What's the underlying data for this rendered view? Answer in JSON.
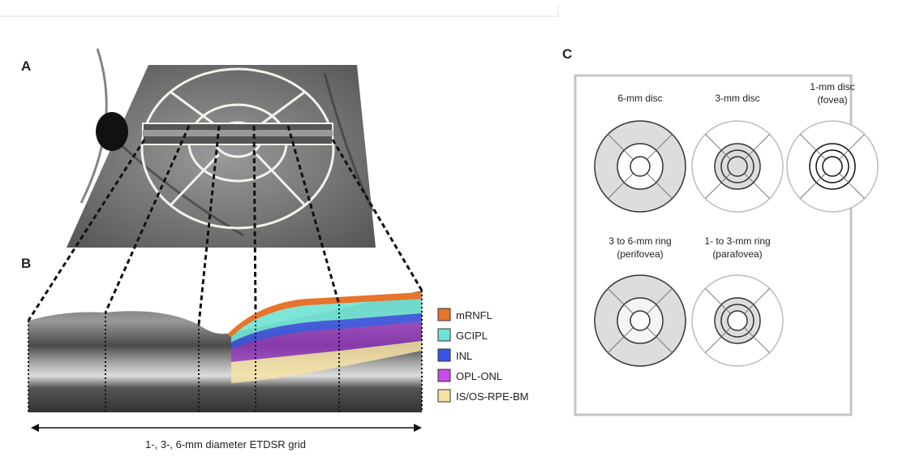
{
  "panels": {
    "a": "A",
    "b": "B",
    "c": "C"
  },
  "legend": [
    "mRNFL",
    "GCIPL",
    "INL",
    "OPL-ONL",
    "IS/OS-RPE-BM"
  ],
  "caption": "1-, 3-, 6-mm diameter ETDSR grid",
  "discs": [
    [
      "6-mm disc"
    ],
    [
      "3-mm disc"
    ],
    [
      "1-mm disc",
      "(fovea)"
    ],
    [
      "3 to 6-mm ring",
      "(perifovea)"
    ],
    [
      "1- to 3-mm ring",
      "(parafovea)"
    ]
  ]
}
